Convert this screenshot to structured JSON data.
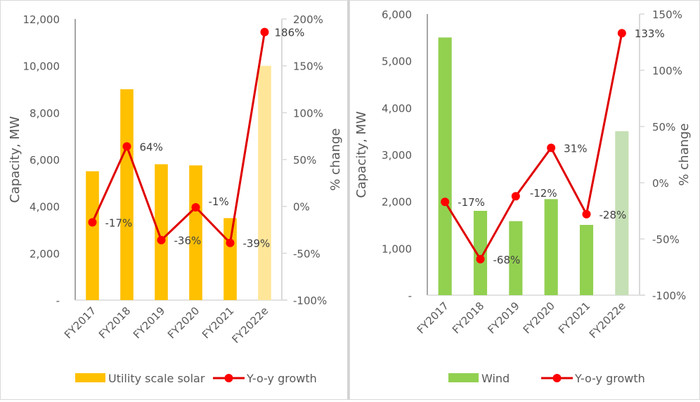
{
  "chart_data": [
    {
      "type": "bar+line",
      "title": "",
      "categories": [
        "FY2017",
        "FY2018",
        "FY2019",
        "FY2020",
        "FY2021",
        "FY2022e"
      ],
      "series": [
        {
          "name": "Utility scale solar",
          "type": "bar",
          "axis": "left",
          "color": "#FFC000",
          "estimate_color": "#FFE699",
          "values": [
            5500,
            9000,
            5800,
            5750,
            3500,
            10000
          ]
        },
        {
          "name": "Y-o-y growth",
          "type": "line",
          "axis": "right",
          "color": "#E00000",
          "values": [
            -17,
            64,
            -36,
            -1,
            -39,
            186
          ],
          "labels": [
            "-17%",
            "64%",
            "-36%",
            "-1%",
            "-39%",
            "186%"
          ]
        }
      ],
      "ylabel": "Capacity, MW",
      "ylim": [
        0,
        12000
      ],
      "yticks": [
        0,
        2000,
        4000,
        6000,
        8000,
        10000,
        12000
      ],
      "ytick_labels": [
        "-",
        "2,000",
        "4,000",
        "6,000",
        "8,000",
        "10,000",
        "12,000"
      ],
      "y2label": "% change",
      "y2lim": [
        -100,
        200
      ],
      "y2ticks": [
        -100,
        -50,
        0,
        50,
        100,
        150,
        200
      ],
      "y2tick_labels": [
        "-100%",
        "-50%",
        "0%",
        "50%",
        "100%",
        "150%",
        "200%"
      ],
      "grid": false,
      "legend": "bottom"
    },
    {
      "type": "bar+line",
      "title": "",
      "categories": [
        "FY2017",
        "FY2018",
        "FY2019",
        "FY2020",
        "FY2021",
        "FY2022e"
      ],
      "series": [
        {
          "name": "Wind",
          "type": "bar",
          "axis": "left",
          "color": "#92D050",
          "estimate_color": "#C5E0B4",
          "values": [
            5500,
            1800,
            1580,
            2050,
            1500,
            3500
          ]
        },
        {
          "name": "Y-o-y growth",
          "type": "line",
          "axis": "right",
          "color": "#E00000",
          "values": [
            -17,
            -68,
            -12,
            31,
            -28,
            133
          ],
          "labels": [
            "-17%",
            "-68%",
            "-12%",
            "31%",
            "-28%",
            "133%"
          ]
        }
      ],
      "ylabel": "Capacity, MW",
      "ylim": [
        0,
        6000
      ],
      "yticks": [
        0,
        1000,
        2000,
        3000,
        4000,
        5000,
        6000
      ],
      "ytick_labels": [
        "-",
        "1,000",
        "2,000",
        "3,000",
        "4,000",
        "5,000",
        "6,000"
      ],
      "y2label": "% change",
      "y2lim": [
        -100,
        150
      ],
      "y2ticks": [
        -100,
        -50,
        0,
        50,
        100,
        150
      ],
      "y2tick_labels": [
        "-100%",
        "-50%",
        "0%",
        "50%",
        "100%",
        "150%"
      ],
      "grid": false,
      "legend": "bottom"
    }
  ]
}
